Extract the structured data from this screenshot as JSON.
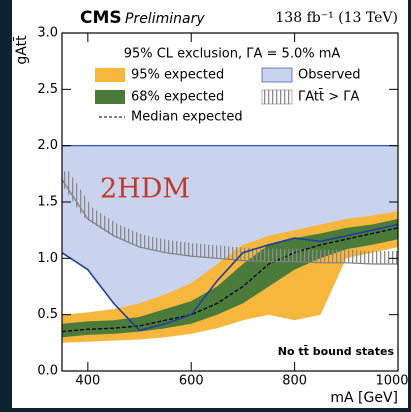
{
  "chart_data": {
    "type": "exclusion",
    "experiment": "CMS",
    "status": "Preliminary",
    "luminosity": "138 fb⁻¹ (13 TeV)",
    "legend_title": "95% CL exclusion, ΓA = 5.0% mA",
    "model_label": "2HDM",
    "annotation": "No tt̄ bound states",
    "x_label": "mA [GeV]",
    "y_label": "gAtt̄",
    "x": [
      350,
      400,
      450,
      500,
      550,
      600,
      650,
      700,
      750,
      800,
      850,
      900,
      950,
      1000
    ],
    "xlim": [
      350,
      1000
    ],
    "xticks": [
      400,
      600,
      800,
      1000
    ],
    "ylim": [
      0,
      3
    ],
    "yticks": [
      {
        "value": 0,
        "label": "0.0"
      },
      {
        "value": 0.5,
        "label": "0.5"
      },
      {
        "value": 1,
        "label": "1.0"
      },
      {
        "value": 1.5,
        "label": "1.5"
      },
      {
        "value": 2,
        "label": "2.0"
      },
      {
        "value": 2.5,
        "label": "2.5"
      },
      {
        "value": 3,
        "label": "3.0"
      }
    ],
    "series": [
      {
        "name": "95% expected",
        "color": "#f6b73c",
        "kind": "band",
        "lower": [
          0.25,
          0.26,
          0.27,
          0.28,
          0.3,
          0.33,
          0.38,
          0.45,
          0.5,
          0.45,
          0.5,
          1.0,
          1.05,
          1.1
        ],
        "upper": [
          0.5,
          0.52,
          0.55,
          0.6,
          0.68,
          0.78,
          0.95,
          1.12,
          1.2,
          1.25,
          1.3,
          1.35,
          1.38,
          1.42
        ]
      },
      {
        "name": "68% expected",
        "color": "#4b7b3a",
        "kind": "band",
        "lower": [
          0.3,
          0.32,
          0.33,
          0.35,
          0.38,
          0.42,
          0.5,
          0.6,
          0.75,
          0.9,
          1.0,
          1.08,
          1.12,
          1.17
        ],
        "upper": [
          0.42,
          0.44,
          0.45,
          0.48,
          0.55,
          0.62,
          0.75,
          0.95,
          1.12,
          1.18,
          1.22,
          1.27,
          1.3,
          1.35
        ]
      },
      {
        "name": "Median expected",
        "color": "#000000",
        "kind": "dashed",
        "values": [
          0.35,
          0.37,
          0.38,
          0.4,
          0.45,
          0.5,
          0.6,
          0.75,
          0.95,
          1.05,
          1.12,
          1.17,
          1.22,
          1.27
        ]
      },
      {
        "name": "Observed",
        "color": "#1f3fa6",
        "fill": "#c9d3ee",
        "kind": "observed",
        "values": [
          1.05,
          0.9,
          0.6,
          0.36,
          0.42,
          0.5,
          0.8,
          1.05,
          1.12,
          1.18,
          1.15,
          1.2,
          1.25,
          1.3
        ],
        "upper_bound": 2.0
      },
      {
        "name": "ΓAtt̄ > ΓA",
        "color": "#808080",
        "kind": "hatched",
        "values": [
          1.7,
          1.35,
          1.2,
          1.1,
          1.05,
          1.02,
          1.0,
          0.98,
          0.97,
          0.97,
          0.96,
          0.96,
          0.95,
          0.95
        ]
      }
    ]
  }
}
